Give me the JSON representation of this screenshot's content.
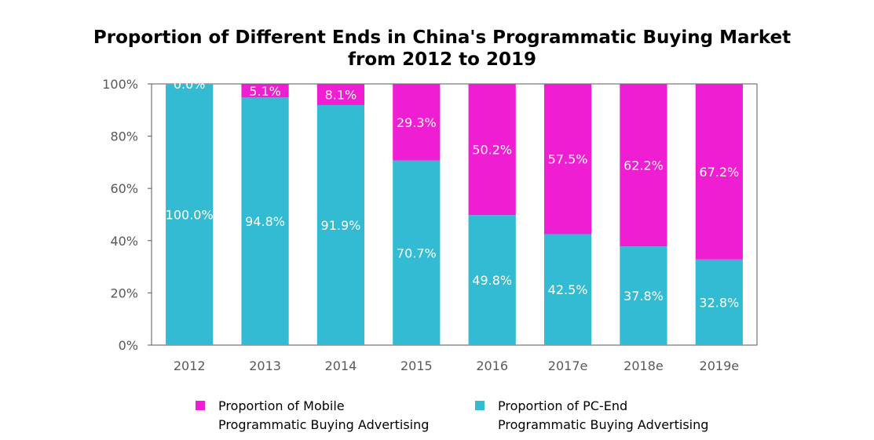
{
  "chart_data": {
    "type": "bar",
    "stacked": true,
    "title": [
      "Proportion of Different Ends in China's Programmatic Buying Market",
      "from 2012 to 2019"
    ],
    "categories": [
      "2012",
      "2013",
      "2014",
      "2015",
      "2016",
      "2017e",
      "2018e",
      "2019e"
    ],
    "series": [
      {
        "name": [
          "Proportion of PC-End",
          "Programmatic Buying Advertising"
        ],
        "color": "#33BBD3",
        "values": [
          100.0,
          94.8,
          91.9,
          70.7,
          49.8,
          42.5,
          37.8,
          32.8
        ],
        "labels": [
          "100.0%",
          "94.8%",
          "91.9%",
          "70.7%",
          "49.8%",
          "42.5%",
          "37.8%",
          "32.8%"
        ]
      },
      {
        "name": [
          "Proportion of Mobile",
          "Programmatic Buying Advertising"
        ],
        "color": "#F01ED2",
        "values": [
          0.0,
          5.1,
          8.1,
          29.3,
          50.2,
          57.5,
          62.2,
          67.2
        ],
        "labels": [
          "0.0%",
          "5.1%",
          "8.1%",
          "29.3%",
          "50.2%",
          "57.5%",
          "62.2%",
          "67.2%"
        ]
      }
    ],
    "yticks": [
      "0%",
      "20%",
      "40%",
      "60%",
      "80%",
      "100%"
    ],
    "ylim": [
      0,
      100
    ],
    "grid": false,
    "legend_position": "bottom",
    "legend_order": [
      1,
      0
    ]
  }
}
